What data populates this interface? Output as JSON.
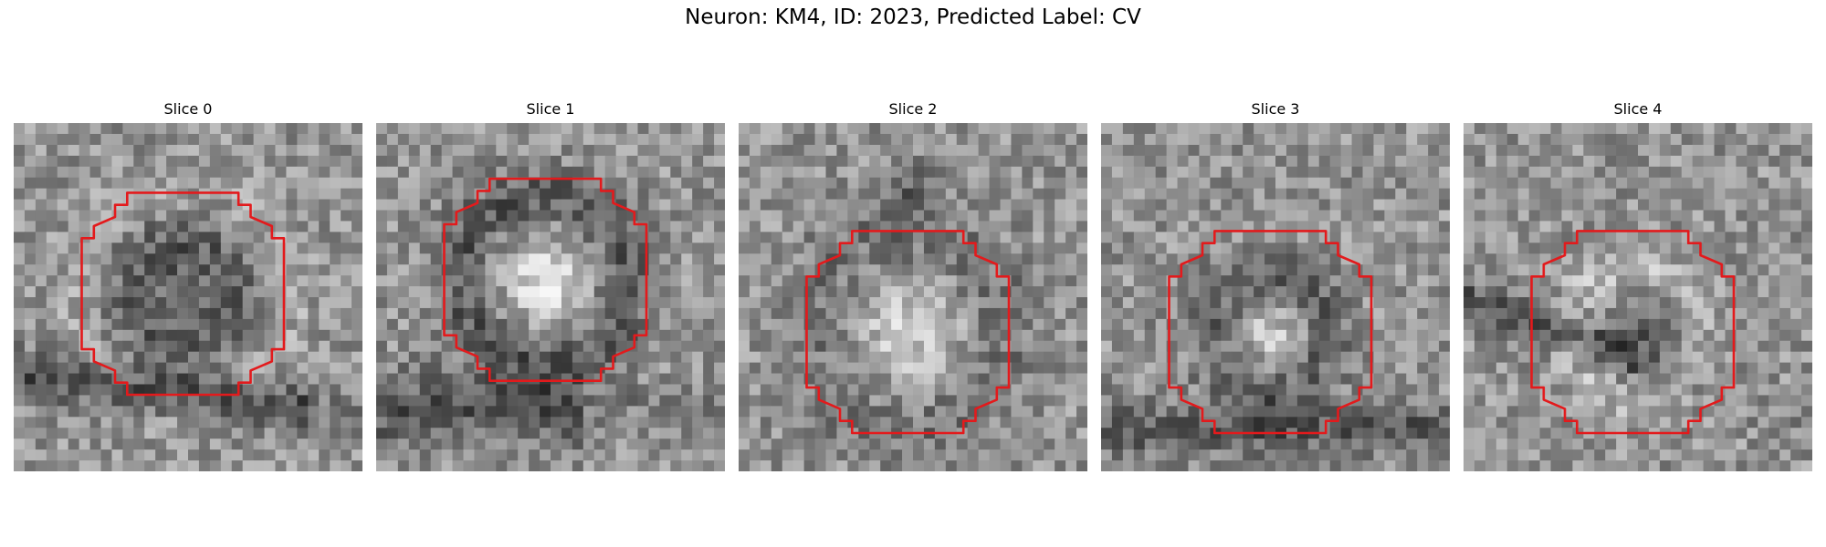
{
  "figure": {
    "title": "Neuron: KM4, ID: 2023, Predicted Label: CV"
  },
  "contour_color": "#e31a1c",
  "panels": [
    {
      "title": "Slice 0",
      "pattern": "dark-ring-upper",
      "center": [
        0.485,
        0.49
      ]
    },
    {
      "title": "Slice 1",
      "pattern": "bright-core",
      "center": [
        0.485,
        0.45
      ]
    },
    {
      "title": "Slice 2",
      "pattern": "bright-core-soft",
      "center": [
        0.485,
        0.6
      ]
    },
    {
      "title": "Slice 3",
      "pattern": "bright-core-dark-ring",
      "center": [
        0.485,
        0.6
      ]
    },
    {
      "title": "Slice 4",
      "pattern": "dark-core-bright-rim",
      "center": [
        0.485,
        0.6
      ]
    }
  ]
}
